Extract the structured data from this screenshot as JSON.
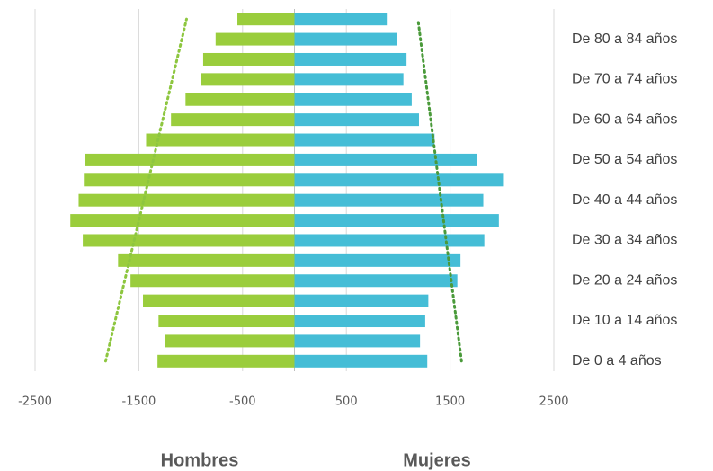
{
  "chart_data": {
    "type": "pyramid",
    "categories": [
      "De 0 a 4 años",
      null,
      "De 10 a 14 años",
      null,
      "De 20 a 24 años",
      null,
      "De 30 a 34 años",
      null,
      "De 40 a 44 años",
      null,
      "De 50 a 54 años",
      null,
      "De 60 a 64 años",
      null,
      "De 70 a 74 años",
      null,
      "De 80 a 84 años",
      null
    ],
    "series": [
      {
        "name": "Hombres",
        "color": "#9acd3c",
        "trend_color": "#8dc63f",
        "values": [
          -1320,
          -1250,
          -1310,
          -1460,
          -1580,
          -1700,
          -2040,
          -2160,
          -2080,
          -2030,
          -2020,
          -1430,
          -1190,
          -1050,
          -900,
          -880,
          -760,
          -550
        ],
        "trend": [
          -1820,
          -1040
        ]
      },
      {
        "name": "Mujeres",
        "color": "#45bdd6",
        "trend_color": "#4a9a3a",
        "values": [
          1280,
          1210,
          1260,
          1290,
          1570,
          1600,
          1830,
          1970,
          1820,
          2010,
          1760,
          1350,
          1200,
          1130,
          1050,
          1080,
          990,
          890
        ],
        "trend": [
          1610,
          1190
        ]
      }
    ],
    "xlim": [
      -2500,
      2500
    ],
    "xticks": [
      -2500,
      -1500,
      -500,
      500,
      1500,
      2500
    ],
    "grid": true
  }
}
